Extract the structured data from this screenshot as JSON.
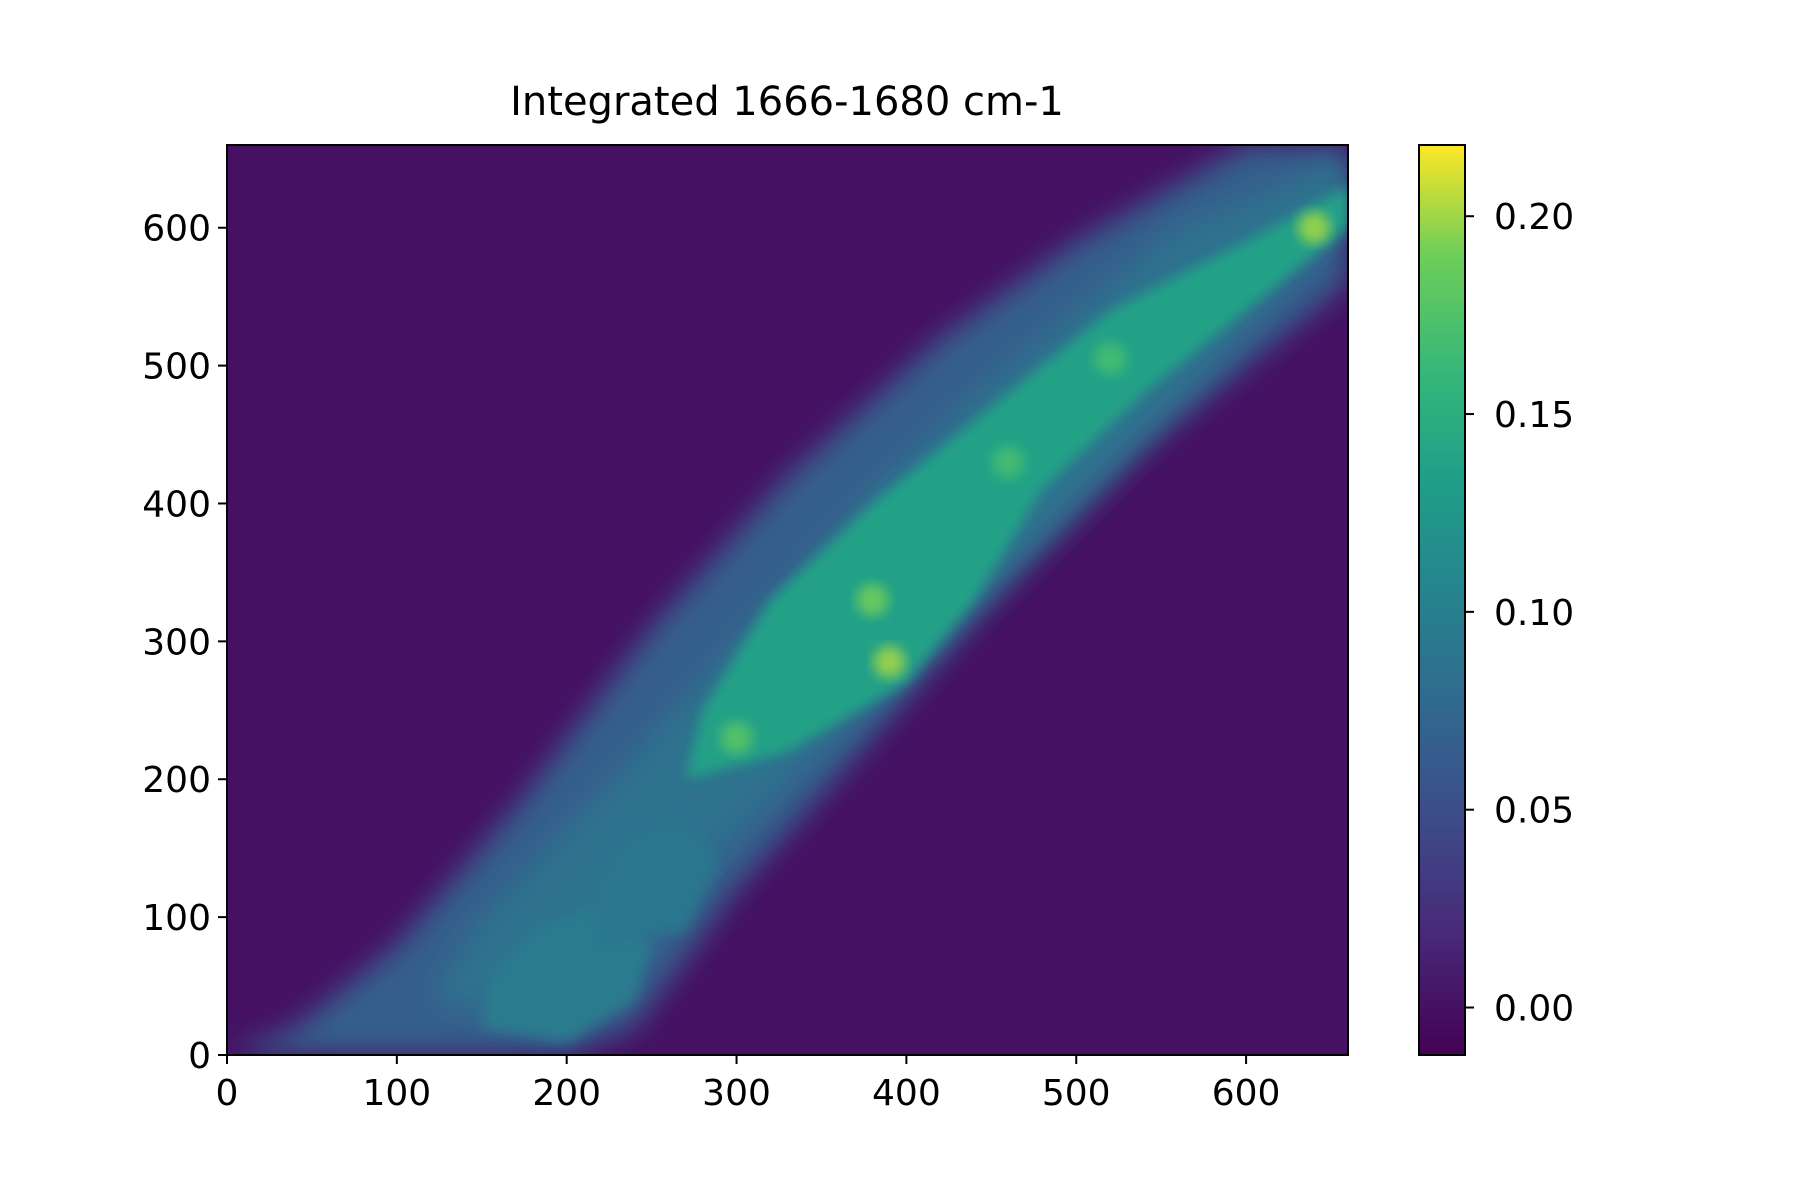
{
  "chart_data": {
    "type": "heatmap",
    "title": "Integrated 1666-1680 cm-1",
    "xlabel": "",
    "ylabel": "",
    "xlim": [
      0,
      660
    ],
    "ylim": [
      0,
      660
    ],
    "x_ticks": [
      0,
      100,
      200,
      300,
      400,
      500,
      600
    ],
    "y_ticks": [
      0,
      100,
      200,
      300,
      400,
      500,
      600
    ],
    "x_tick_labels": [
      "0",
      "100",
      "200",
      "300",
      "400",
      "500",
      "600"
    ],
    "y_tick_labels": [
      "0",
      "100",
      "200",
      "300",
      "400",
      "500",
      "600"
    ],
    "colormap": "viridis",
    "colorbar": {
      "range": [
        -0.012,
        0.218
      ],
      "ticks": [
        0.0,
        0.05,
        0.1,
        0.15,
        0.2
      ],
      "tick_labels": [
        "0.00",
        "0.05",
        "0.10",
        "0.15",
        "0.20"
      ]
    },
    "grid": false,
    "background_value": 0.0,
    "regions": [
      {
        "name": "body-band",
        "value": 0.065,
        "path": [
          [
            0,
            0
          ],
          [
            60,
            0
          ],
          [
            200,
            0
          ],
          [
            240,
            20
          ],
          [
            300,
            120
          ],
          [
            380,
            230
          ],
          [
            450,
            330
          ],
          [
            540,
            440
          ],
          [
            660,
            560
          ],
          [
            660,
            660
          ],
          [
            600,
            660
          ],
          [
            500,
            590
          ],
          [
            420,
            520
          ],
          [
            330,
            420
          ],
          [
            250,
            310
          ],
          [
            170,
            180
          ],
          [
            100,
            80
          ],
          [
            40,
            20
          ]
        ]
      },
      {
        "name": "inner-band",
        "value": 0.085,
        "path": [
          [
            120,
            40
          ],
          [
            200,
            20
          ],
          [
            260,
            110
          ],
          [
            330,
            200
          ],
          [
            420,
            300
          ],
          [
            500,
            400
          ],
          [
            580,
            500
          ],
          [
            660,
            610
          ],
          [
            660,
            650
          ],
          [
            560,
            600
          ],
          [
            460,
            500
          ],
          [
            380,
            410
          ],
          [
            300,
            300
          ],
          [
            220,
            190
          ],
          [
            150,
            100
          ]
        ]
      },
      {
        "name": "gut-bright",
        "value": 0.135,
        "path": [
          [
            270,
            200
          ],
          [
            330,
            220
          ],
          [
            400,
            270
          ],
          [
            440,
            330
          ],
          [
            480,
            410
          ],
          [
            540,
            480
          ],
          [
            620,
            560
          ],
          [
            660,
            600
          ],
          [
            660,
            630
          ],
          [
            600,
            590
          ],
          [
            520,
            540
          ],
          [
            450,
            470
          ],
          [
            380,
            400
          ],
          [
            320,
            330
          ],
          [
            280,
            250
          ]
        ]
      },
      {
        "name": "lower-blob",
        "value": 0.095,
        "path": [
          [
            150,
            20
          ],
          [
            200,
            10
          ],
          [
            240,
            40
          ],
          [
            250,
            80
          ],
          [
            220,
            110
          ],
          [
            180,
            90
          ],
          [
            155,
            55
          ]
        ]
      },
      {
        "name": "mid-blob",
        "value": 0.09,
        "path": [
          [
            220,
            80
          ],
          [
            270,
            90
          ],
          [
            290,
            140
          ],
          [
            270,
            170
          ],
          [
            235,
            160
          ],
          [
            215,
            120
          ]
        ]
      }
    ],
    "bright_spots": [
      {
        "x": 390,
        "y": 285,
        "value": 0.2
      },
      {
        "x": 380,
        "y": 330,
        "value": 0.19
      },
      {
        "x": 300,
        "y": 230,
        "value": 0.18
      },
      {
        "x": 460,
        "y": 430,
        "value": 0.17
      },
      {
        "x": 520,
        "y": 505,
        "value": 0.17
      },
      {
        "x": 640,
        "y": 600,
        "value": 0.2
      }
    ]
  }
}
